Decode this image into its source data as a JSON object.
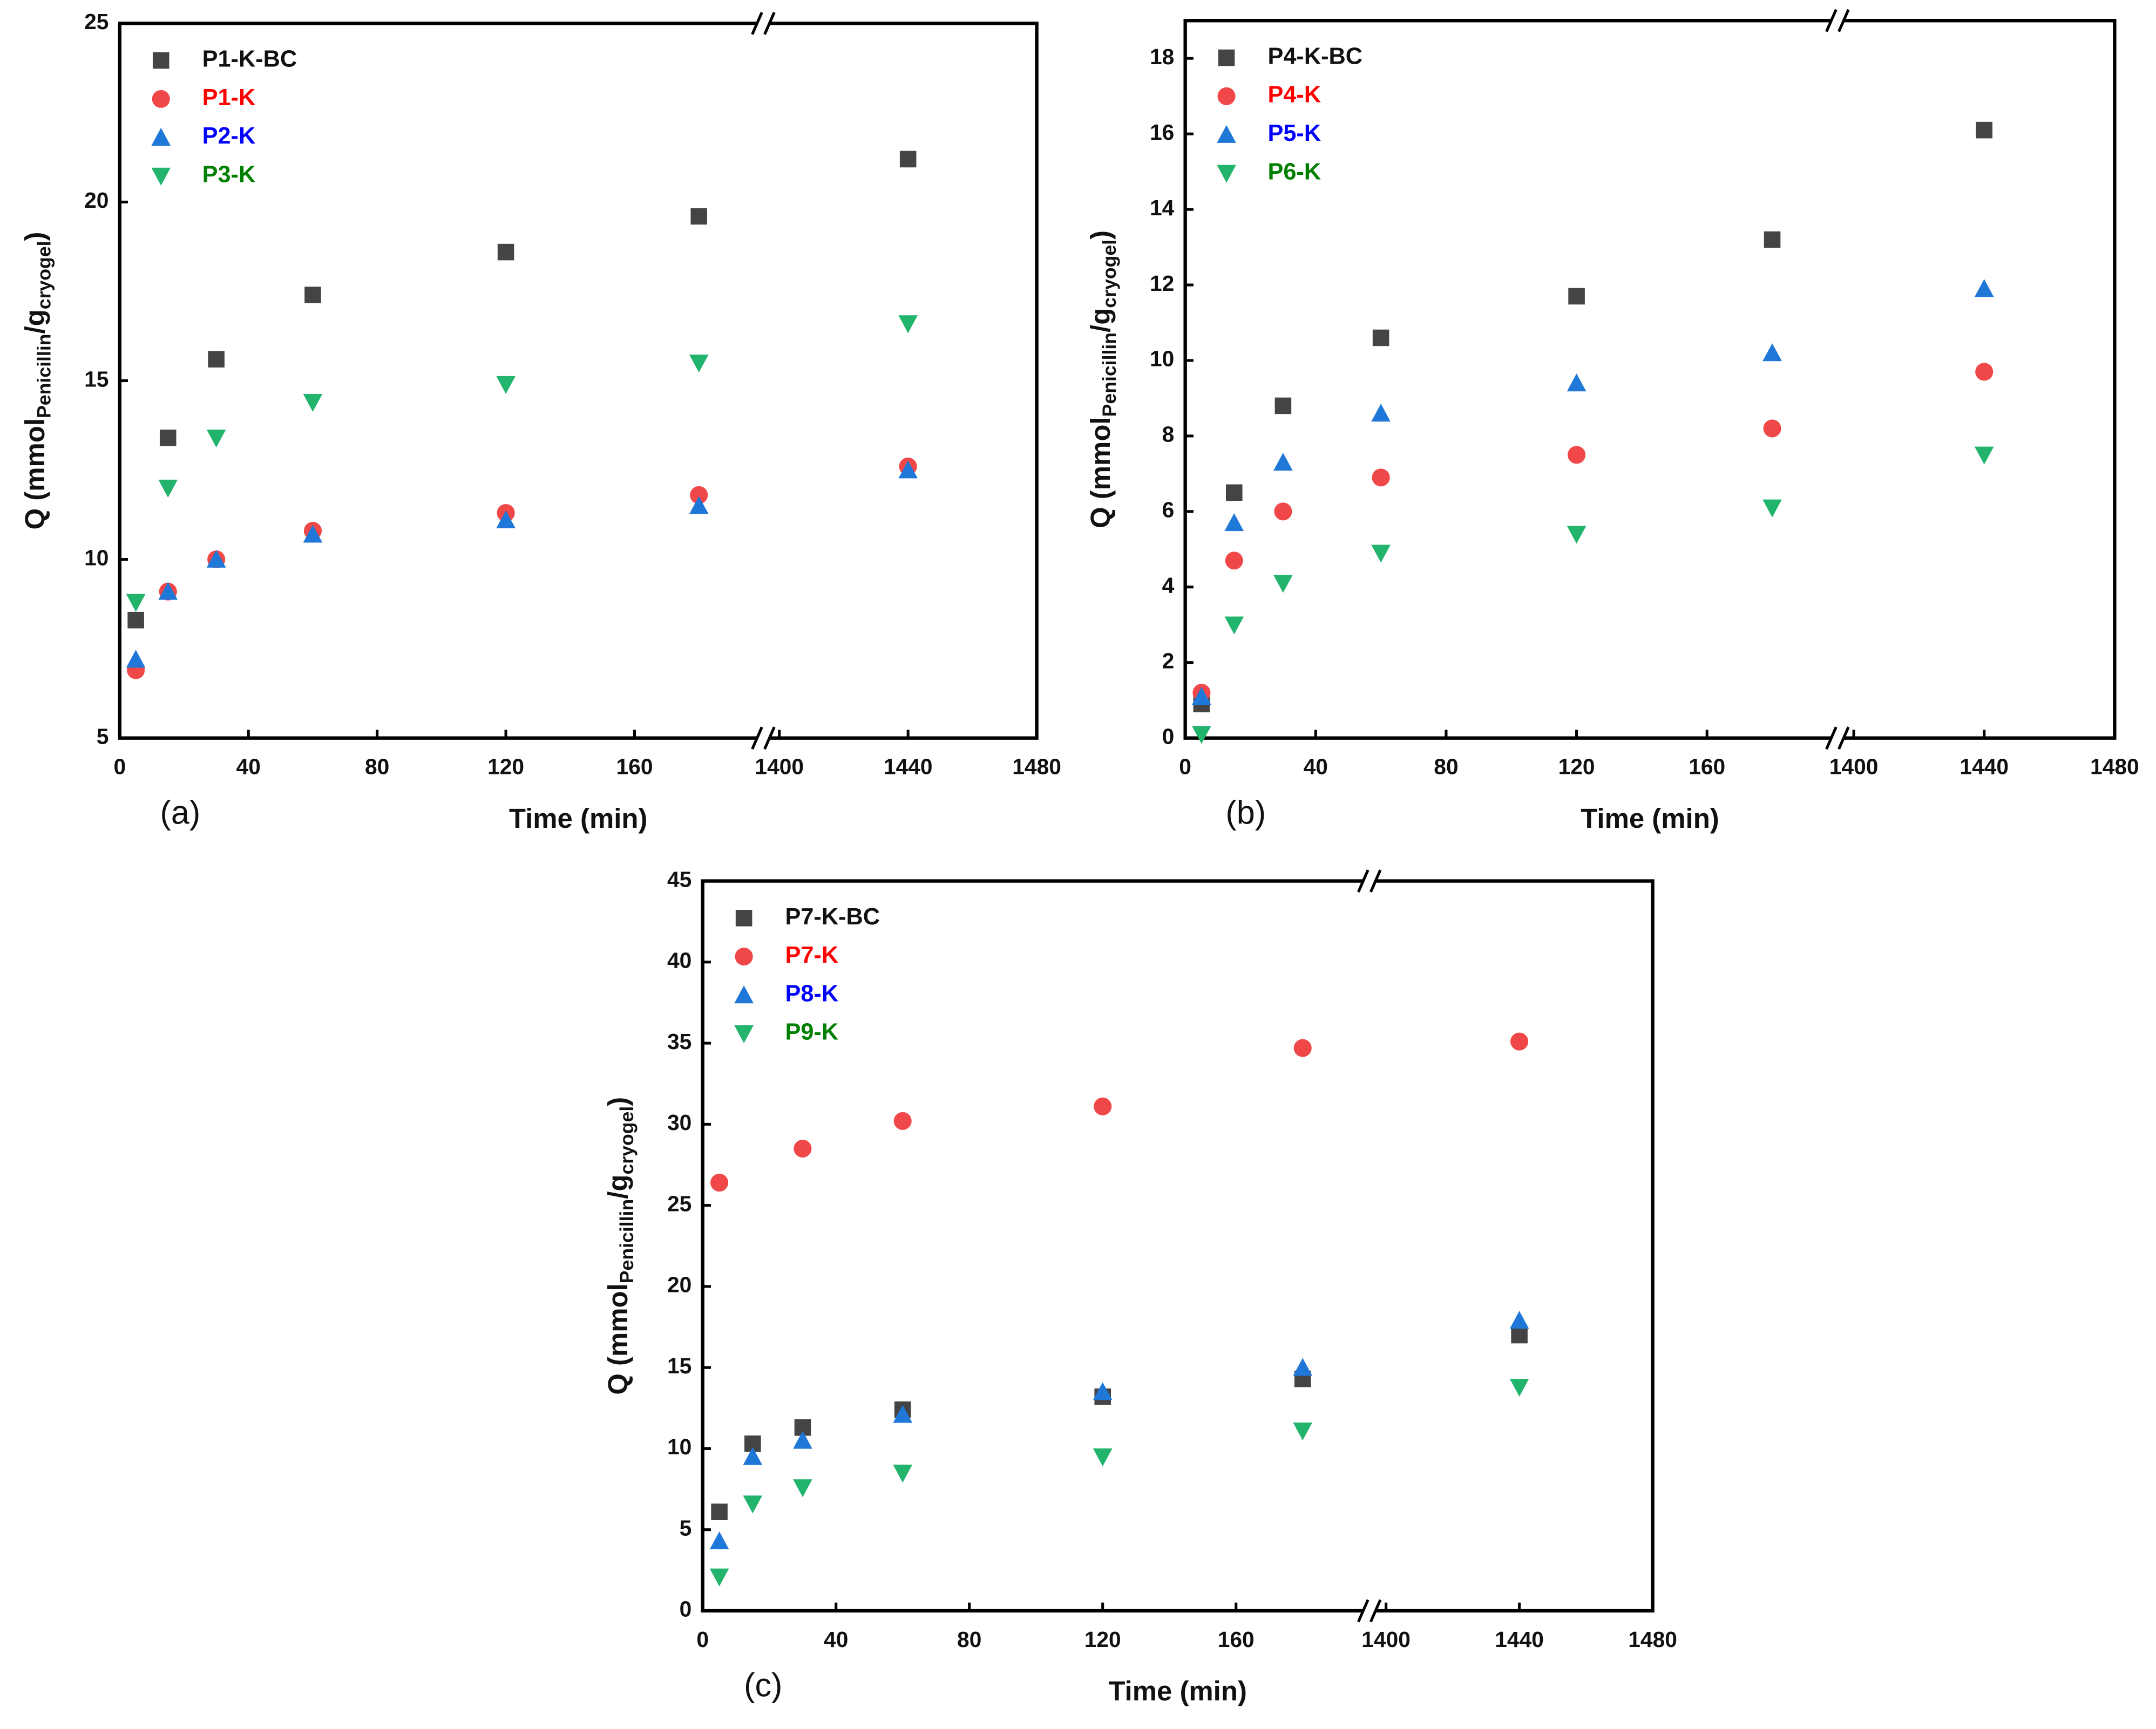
{
  "chart_data": [
    {
      "type": "scatter",
      "panel_label": "(a)",
      "xlabel": "Time (min)",
      "ylabel_parts": [
        "Q (mmol",
        "Penicillin",
        "/g",
        "cryogel",
        ")"
      ],
      "x": [
        5,
        15,
        30,
        60,
        120,
        180,
        1440
      ],
      "xlim": [
        0,
        1480
      ],
      "xbreak": [
        200,
        1395
      ],
      "xticks": [
        0,
        40,
        80,
        120,
        160,
        1400,
        1440,
        1480
      ],
      "ylim": [
        5,
        25
      ],
      "yticks": [
        5,
        10,
        15,
        20,
        25
      ],
      "legend": "upper left",
      "series": [
        {
          "name": "P1-K-BC",
          "color": "#444444",
          "legend_text_color": "#111111",
          "marker": "square",
          "values": [
            8.3,
            13.4,
            15.6,
            17.4,
            18.6,
            19.6,
            21.2
          ]
        },
        {
          "name": "P1-K",
          "color": "#f04848",
          "legend_text_color": "#ff0000",
          "marker": "circle",
          "values": [
            6.9,
            9.1,
            10.0,
            10.8,
            11.3,
            11.8,
            12.6
          ]
        },
        {
          "name": "P2-K",
          "color": "#1f78d8",
          "legend_text_color": "#0000ff",
          "marker": "triangle",
          "values": [
            7.2,
            9.1,
            10.0,
            10.7,
            11.1,
            11.5,
            12.5
          ]
        },
        {
          "name": "P3-K",
          "color": "#22b46c",
          "legend_text_color": "#008000",
          "marker": "triangle-down",
          "values": [
            8.8,
            12.0,
            13.4,
            14.4,
            14.9,
            15.5,
            16.6
          ]
        }
      ]
    },
    {
      "type": "scatter",
      "panel_label": "(b)",
      "xlabel": "Time (min)",
      "ylabel_parts": [
        "Q (mmol",
        "Penicillin",
        "/g",
        "cryogel",
        ")"
      ],
      "x": [
        5,
        15,
        30,
        60,
        120,
        180,
        1440
      ],
      "xlim": [
        0,
        1480
      ],
      "xbreak": [
        200,
        1395
      ],
      "xticks": [
        0,
        40,
        80,
        120,
        160,
        1400,
        1440,
        1480
      ],
      "ylim": [
        0,
        19
      ],
      "yticks": [
        0,
        2,
        4,
        6,
        8,
        10,
        12,
        14,
        16,
        18
      ],
      "legend": "upper left",
      "series": [
        {
          "name": "P4-K-BC",
          "color": "#444444",
          "legend_text_color": "#111111",
          "marker": "square",
          "values": [
            0.9,
            6.5,
            8.8,
            10.6,
            11.7,
            13.2,
            16.1
          ]
        },
        {
          "name": "P4-K",
          "color": "#f04848",
          "legend_text_color": "#ff0000",
          "marker": "circle",
          "values": [
            1.2,
            4.7,
            6.0,
            6.9,
            7.5,
            8.2,
            9.7
          ]
        },
        {
          "name": "P5-K",
          "color": "#1f78d8",
          "legend_text_color": "#0000ff",
          "marker": "triangle",
          "values": [
            1.1,
            5.7,
            7.3,
            8.6,
            9.4,
            10.2,
            11.9
          ]
        },
        {
          "name": "P6-K",
          "color": "#22b46c",
          "legend_text_color": "#008000",
          "marker": "triangle-down",
          "values": [
            0.1,
            3.0,
            4.1,
            4.9,
            5.4,
            6.1,
            7.5
          ]
        }
      ]
    },
    {
      "type": "scatter",
      "panel_label": "(c)",
      "xlabel": "Time (min)",
      "ylabel_parts": [
        "Q (mmol",
        "Penicillin",
        "/g",
        "cryogel",
        ")"
      ],
      "x": [
        5,
        15,
        30,
        60,
        120,
        180,
        1440
      ],
      "xlim": [
        0,
        1480
      ],
      "xbreak": [
        200,
        1395
      ],
      "xticks": [
        0,
        40,
        80,
        120,
        160,
        1400,
        1440,
        1480
      ],
      "ylim": [
        0,
        45
      ],
      "yticks": [
        0,
        5,
        10,
        15,
        20,
        25,
        30,
        35,
        40,
        45
      ],
      "legend": "upper left",
      "series": [
        {
          "name": "P7-K-BC",
          "color": "#444444",
          "legend_text_color": "#111111",
          "marker": "square",
          "values": [
            6.1,
            10.3,
            11.3,
            12.4,
            13.2,
            14.3,
            17.0
          ]
        },
        {
          "name": "P7-K",
          "color": "#f04848",
          "legend_text_color": "#ff0000",
          "marker": "circle",
          "values": [
            26.4,
            null,
            28.5,
            30.2,
            31.1,
            34.7,
            35.1
          ]
        },
        {
          "name": "P8-K",
          "color": "#1f78d8",
          "legend_text_color": "#0000ff",
          "marker": "triangle",
          "values": [
            4.3,
            9.5,
            10.5,
            12.1,
            13.5,
            15.0,
            17.9
          ]
        },
        {
          "name": "P9-K",
          "color": "#22b46c",
          "legend_text_color": "#008000",
          "marker": "triangle-down",
          "values": [
            2.1,
            6.6,
            7.6,
            8.5,
            9.5,
            11.1,
            13.8
          ]
        }
      ]
    }
  ]
}
